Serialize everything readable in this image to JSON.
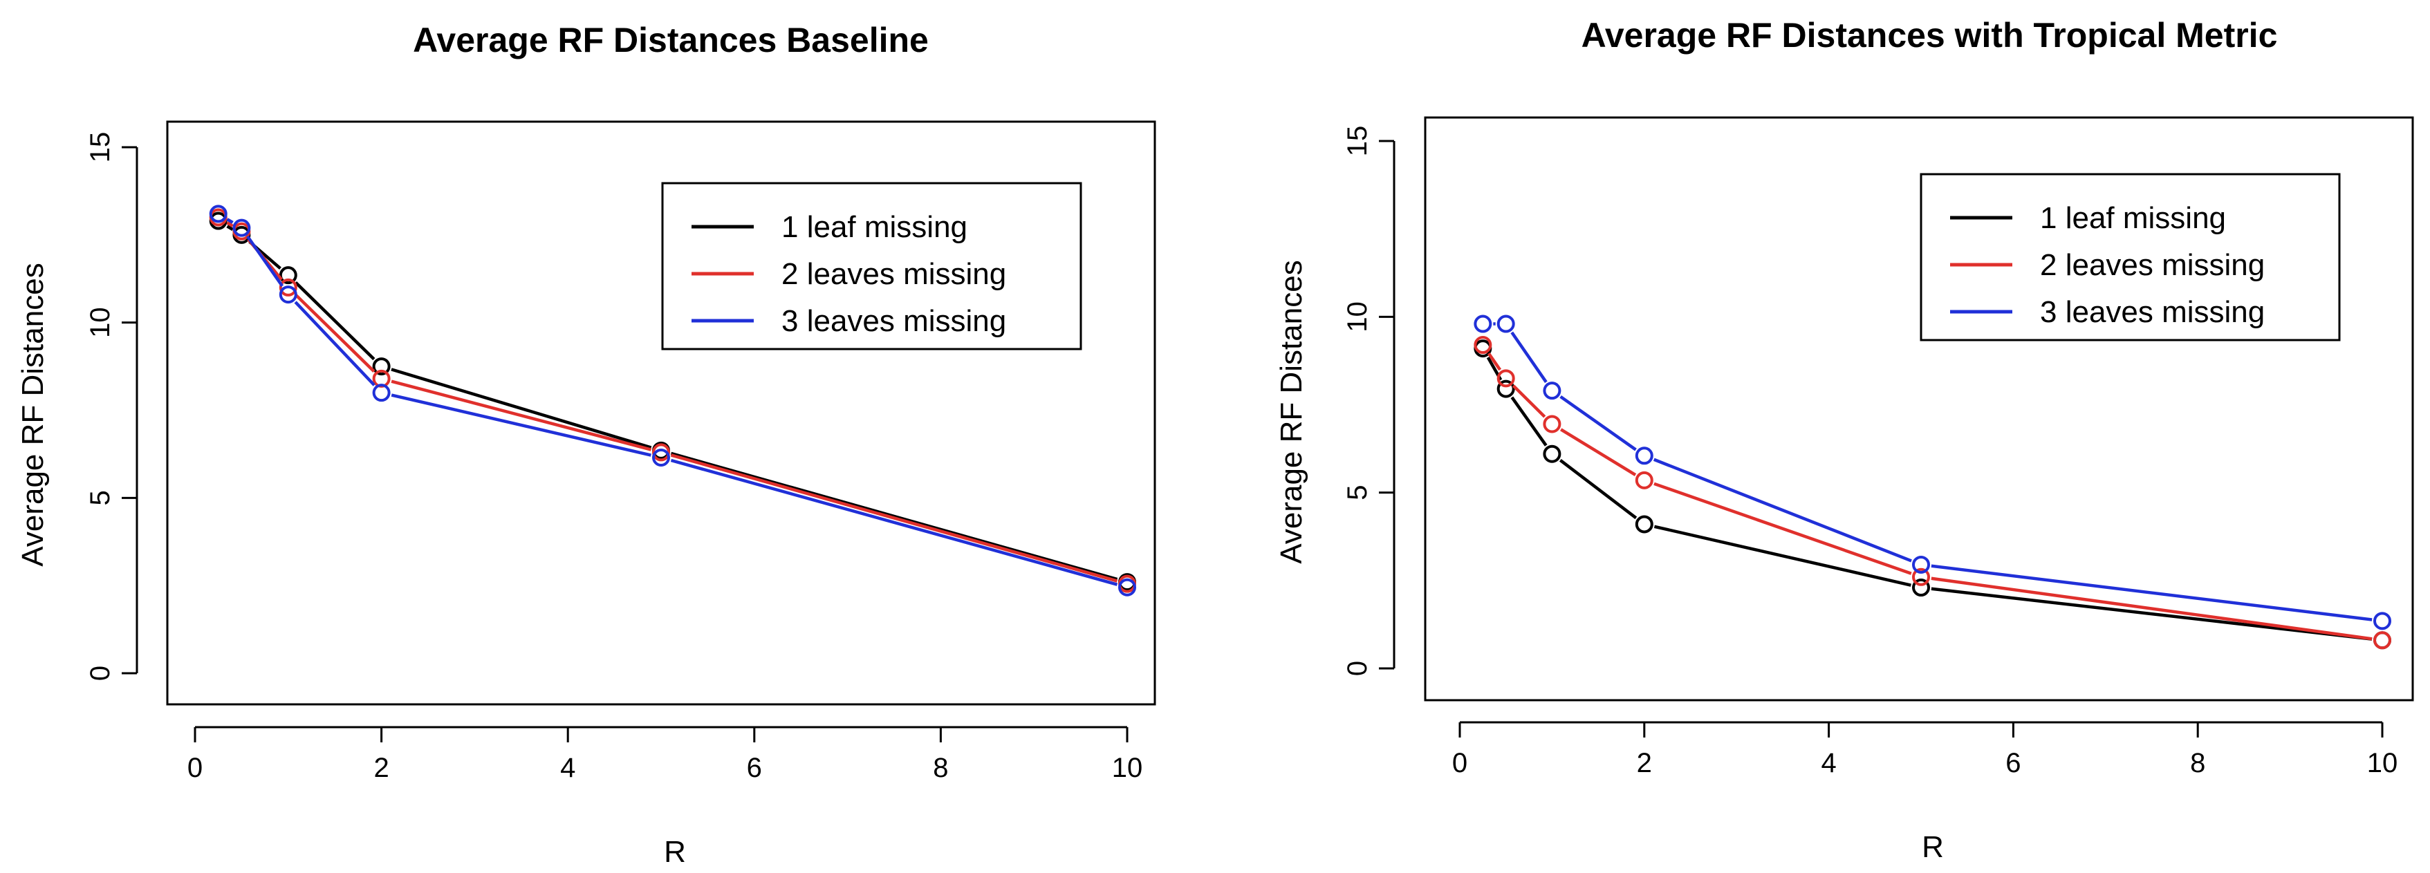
{
  "chart_data": [
    {
      "type": "line",
      "title": "Average RF Distances Baseline",
      "xlabel": "R",
      "ylabel": "Average RF Distances",
      "x": [
        0.25,
        0.5,
        1,
        2,
        5,
        10
      ],
      "xlim": [
        0,
        10
      ],
      "ylim": [
        0,
        15
      ],
      "xticks": [
        "0",
        "2",
        "4",
        "6",
        "8",
        "10"
      ],
      "yticks": [
        "0",
        "5",
        "10",
        "15"
      ],
      "legend_position": "top-right",
      "series": [
        {
          "name": "1 leaf missing",
          "color": "#000000",
          "values": [
            12.9,
            12.5,
            11.35,
            8.75,
            6.35,
            2.6
          ]
        },
        {
          "name": "2 leaves missing",
          "color": "#e0302c",
          "values": [
            13.0,
            12.6,
            11.0,
            8.4,
            6.3,
            2.55
          ]
        },
        {
          "name": "3 leaves missing",
          "color": "#2030d8",
          "values": [
            13.1,
            12.7,
            10.8,
            8.0,
            6.15,
            2.45
          ]
        }
      ]
    },
    {
      "type": "line",
      "title": "Average RF Distances with Tropical Metric",
      "xlabel": "R",
      "ylabel": "Average RF Distances",
      "x": [
        0.25,
        0.5,
        1,
        2,
        5,
        10
      ],
      "xlim": [
        0,
        10
      ],
      "ylim": [
        0,
        15
      ],
      "xticks": [
        "0",
        "2",
        "4",
        "6",
        "8",
        "10"
      ],
      "yticks": [
        "0",
        "5",
        "10",
        "15"
      ],
      "legend_position": "top-right",
      "series": [
        {
          "name": "1 leaf missing",
          "color": "#000000",
          "values": [
            9.1,
            7.95,
            6.1,
            4.1,
            2.3,
            0.8
          ]
        },
        {
          "name": "2 leaves missing",
          "color": "#e0302c",
          "values": [
            9.2,
            8.25,
            6.95,
            5.35,
            2.6,
            0.8
          ]
        },
        {
          "name": "3 leaves missing",
          "color": "#2030d8",
          "values": [
            9.8,
            9.8,
            7.9,
            6.05,
            2.95,
            1.35
          ]
        }
      ]
    }
  ]
}
